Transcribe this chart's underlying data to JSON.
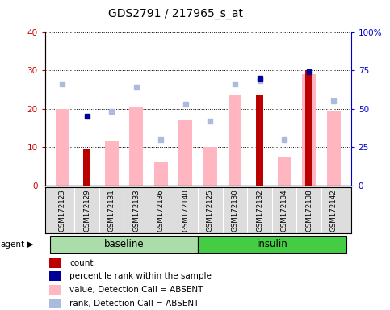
{
  "title": "GDS2791 / 217965_s_at",
  "samples": [
    "GSM172123",
    "GSM172129",
    "GSM172131",
    "GSM172133",
    "GSM172136",
    "GSM172140",
    "GSM172125",
    "GSM172130",
    "GSM172132",
    "GSM172134",
    "GSM172138",
    "GSM172142"
  ],
  "count_values": [
    0,
    9.5,
    0,
    0,
    0,
    0,
    0,
    0,
    23.5,
    0,
    30,
    0
  ],
  "value_absent": [
    20,
    0,
    11.5,
    20.5,
    6,
    17,
    10,
    23.5,
    0,
    7.5,
    29,
    19.5
  ],
  "percentile_rank_pct": [
    null,
    45,
    null,
    null,
    null,
    null,
    null,
    null,
    70,
    null,
    74,
    null
  ],
  "rank_absent_pct": [
    66,
    null,
    48,
    64,
    30,
    53,
    42,
    66,
    68,
    30,
    null,
    55
  ],
  "ylim_left": [
    0,
    40
  ],
  "ylim_right": [
    0,
    100
  ],
  "yticks_left": [
    0,
    10,
    20,
    30,
    40
  ],
  "ytick_labels_right": [
    "0",
    "25",
    "50",
    "75",
    "100%"
  ],
  "left_axis_color": "#CC0000",
  "right_axis_color": "#0000CC",
  "absent_bar_color": "#FFB6C1",
  "rank_absent_color": "#AABBDD",
  "percentile_color": "#000099",
  "red_bar_color": "#BB0000"
}
